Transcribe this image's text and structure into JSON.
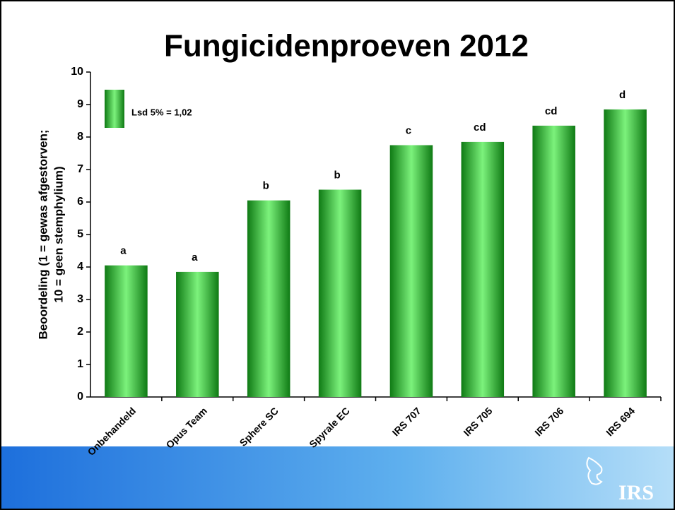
{
  "chart_data": {
    "type": "bar",
    "title": "Fungicidenproeven 2012",
    "y_label_lines": [
      "Beoordeling (1 = gewas afgestorven;",
      "10 = geen stemphylium)"
    ],
    "categories": [
      "Onbehandeld",
      "Opus Team",
      "Sphere SC",
      "Spyrale EC",
      "IRS 707",
      "IRS 705",
      "IRS 706",
      "IRS 694"
    ],
    "values": [
      4.05,
      3.85,
      6.05,
      6.38,
      7.75,
      7.85,
      8.35,
      8.85
    ],
    "letters": [
      "a",
      "a",
      "b",
      "b",
      "c",
      "cd",
      "cd",
      "d"
    ],
    "legend_text": "Lsd 5% = 1,02",
    "color": "#33cc33",
    "ylim": [
      0,
      10
    ],
    "yticks": [
      0,
      1,
      2,
      3,
      4,
      5,
      6,
      7,
      8,
      9,
      10
    ],
    "logo": "IRS"
  }
}
